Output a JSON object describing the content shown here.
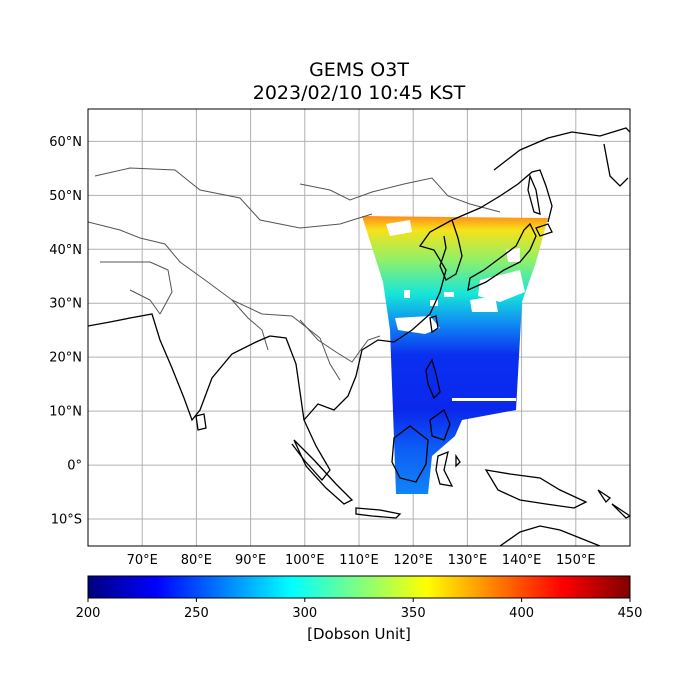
{
  "title": "GEMS O3T",
  "subtitle": "2023/02/10 10:45 KST",
  "map": {
    "lon_range": [
      60,
      160
    ],
    "lat_range": [
      -15,
      66
    ],
    "lat_ticks": [
      {
        "value": 60,
        "label": "60°N"
      },
      {
        "value": 50,
        "label": "50°N"
      },
      {
        "value": 40,
        "label": "40°N"
      },
      {
        "value": 30,
        "label": "30°N"
      },
      {
        "value": 20,
        "label": "20°N"
      },
      {
        "value": 10,
        "label": "10°N"
      },
      {
        "value": 0,
        "label": "0°"
      },
      {
        "value": -10,
        "label": "10°S"
      }
    ],
    "lon_ticks": [
      {
        "value": 70,
        "label": "70°E"
      },
      {
        "value": 80,
        "label": "80°E"
      },
      {
        "value": 90,
        "label": "90°E"
      },
      {
        "value": 100,
        "label": "100°E"
      },
      {
        "value": 110,
        "label": "110°E"
      },
      {
        "value": 120,
        "label": "120°E"
      },
      {
        "value": 130,
        "label": "130°E"
      },
      {
        "value": 140,
        "label": "140°E"
      },
      {
        "value": 150,
        "label": "150°E"
      }
    ],
    "grid": true,
    "colors": {
      "coastline": "#000000",
      "borders": "#555555",
      "grid": "#b0b0b0"
    }
  },
  "colorbar": {
    "min": 200,
    "max": 450,
    "ticks": [
      200,
      250,
      300,
      350,
      400,
      450
    ],
    "label": "[Dobson Unit]",
    "colormap": "jet",
    "orientation": "horizontal"
  }
}
